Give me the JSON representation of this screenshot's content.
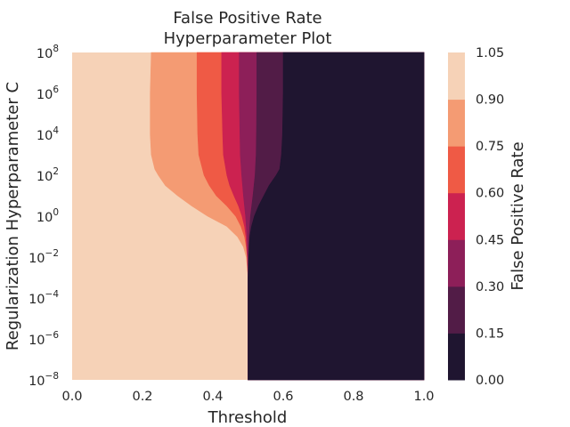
{
  "chart_data": {
    "type": "contour",
    "title": [
      "False Positive Rate",
      "Hyperparameter Plot"
    ],
    "xlabel": "Threshold",
    "ylabel": "Regularization Hyperparameter C",
    "xlim": [
      0.0,
      1.0
    ],
    "ylim_log10": [
      -8,
      8
    ],
    "y_scale": "log",
    "x_ticks": [
      "0.0",
      "0.2",
      "0.4",
      "0.6",
      "0.8",
      "1.0"
    ],
    "y_ticks": [
      {
        "base": "10",
        "exp": "8"
      },
      {
        "base": "10",
        "exp": "6"
      },
      {
        "base": "10",
        "exp": "4"
      },
      {
        "base": "10",
        "exp": "2"
      },
      {
        "base": "10",
        "exp": "0"
      },
      {
        "base": "10",
        "exp": "−2"
      },
      {
        "base": "10",
        "exp": "−4"
      },
      {
        "base": "10",
        "exp": "−6"
      },
      {
        "base": "10",
        "exp": "−8"
      }
    ],
    "colorbar": {
      "label": "False Positive Rate",
      "levels": [
        0.0,
        0.15,
        0.3,
        0.45,
        0.6,
        0.75,
        0.9,
        1.05
      ],
      "tick_labels": [
        "0.00",
        "0.15",
        "0.30",
        "0.45",
        "0.60",
        "0.75",
        "0.90",
        "1.05"
      ],
      "colors": [
        "#1f1530",
        "#521c47",
        "#8d1f59",
        "#cc2250",
        "#ef5a45",
        "#f49b73",
        "#f6d2b7"
      ]
    },
    "band_boundaries": {
      "description_fields": [
        "log10C",
        "threshold"
      ],
      "boundaries": [
        {
          "upper_level": 0.9,
          "points": [
            [
              8,
              0.225
            ],
            [
              6,
              0.222
            ],
            [
              4,
              0.222
            ],
            [
              3,
              0.225
            ],
            [
              2.3,
              0.235
            ],
            [
              2,
              0.245
            ],
            [
              1.5,
              0.265
            ],
            [
              1,
              0.3
            ],
            [
              0.5,
              0.34
            ],
            [
              0,
              0.385
            ],
            [
              -0.5,
              0.44
            ],
            [
              -1,
              0.47
            ],
            [
              -1.5,
              0.487
            ],
            [
              -2,
              0.495
            ],
            [
              -2.5,
              0.498
            ],
            [
              -3,
              0.5
            ],
            [
              -8,
              0.5
            ]
          ]
        },
        {
          "upper_level": 0.75,
          "points": [
            [
              8,
              0.355
            ],
            [
              6,
              0.355
            ],
            [
              4,
              0.357
            ],
            [
              3,
              0.36
            ],
            [
              2,
              0.375
            ],
            [
              1.5,
              0.39
            ],
            [
              1,
              0.41
            ],
            [
              0.5,
              0.44
            ],
            [
              0,
              0.465
            ],
            [
              -0.5,
              0.48
            ],
            [
              -1,
              0.49
            ],
            [
              -1.5,
              0.495
            ],
            [
              -2,
              0.498
            ],
            [
              -3,
              0.5
            ],
            [
              -8,
              0.5
            ]
          ]
        },
        {
          "upper_level": 0.6,
          "points": [
            [
              8,
              0.425
            ],
            [
              6,
              0.425
            ],
            [
              4,
              0.428
            ],
            [
              3,
              0.43
            ],
            [
              2,
              0.44
            ],
            [
              1.5,
              0.448
            ],
            [
              1,
              0.46
            ],
            [
              0.5,
              0.473
            ],
            [
              0,
              0.483
            ],
            [
              -0.5,
              0.49
            ],
            [
              -1,
              0.494
            ],
            [
              -2,
              0.498
            ],
            [
              -3,
              0.5
            ],
            [
              -8,
              0.5
            ]
          ]
        },
        {
          "upper_level": 0.45,
          "points": [
            [
              8,
              0.475
            ],
            [
              6,
              0.475
            ],
            [
              4,
              0.477
            ],
            [
              3,
              0.478
            ],
            [
              2,
              0.482
            ],
            [
              1,
              0.487
            ],
            [
              0,
              0.493
            ],
            [
              -1,
              0.497
            ],
            [
              -2,
              0.499
            ],
            [
              -3,
              0.5
            ],
            [
              -8,
              0.5
            ]
          ]
        },
        {
          "upper_level": 0.3,
          "points": [
            [
              8,
              0.525
            ],
            [
              6,
              0.525
            ],
            [
              4,
              0.524
            ],
            [
              3,
              0.523
            ],
            [
              2,
              0.52
            ],
            [
              1,
              0.514
            ],
            [
              0,
              0.507
            ],
            [
              -1,
              0.503
            ],
            [
              -2,
              0.501
            ],
            [
              -3,
              0.5
            ],
            [
              -8,
              0.5
            ]
          ]
        },
        {
          "upper_level": 0.15,
          "points": [
            [
              8,
              0.6
            ],
            [
              6,
              0.6
            ],
            [
              4,
              0.598
            ],
            [
              3,
              0.595
            ],
            [
              2.3,
              0.59
            ],
            [
              2,
              0.58
            ],
            [
              1.5,
              0.56
            ],
            [
              1,
              0.545
            ],
            [
              0.5,
              0.53
            ],
            [
              0,
              0.518
            ],
            [
              -0.5,
              0.51
            ],
            [
              -1,
              0.505
            ],
            [
              -2,
              0.502
            ],
            [
              -3,
              0.5
            ],
            [
              -8,
              0.5
            ]
          ]
        }
      ]
    }
  }
}
